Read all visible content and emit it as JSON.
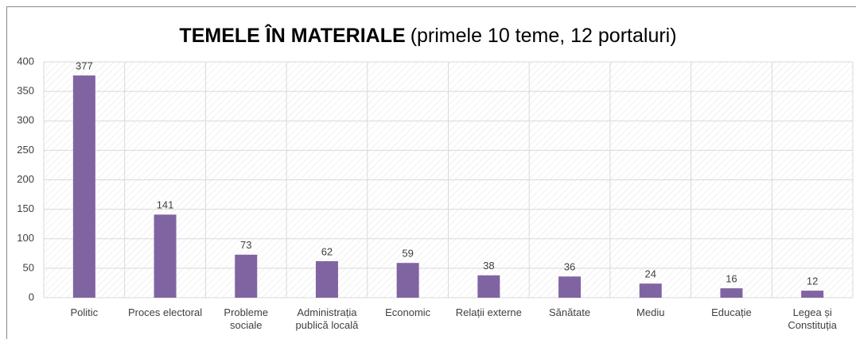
{
  "chart_data": {
    "type": "bar",
    "title": "TEMELE ÎN MATERIALE",
    "subtitle": "(primele 10 teme, 12 portaluri)",
    "categories": [
      "Politic",
      "Proces electoral",
      "Probleme sociale",
      "Administrația publică locală",
      "Economic",
      "Relații externe",
      "Sănătate",
      "Mediu",
      "Educație",
      "Legea și Constituția"
    ],
    "values": [
      377,
      141,
      73,
      62,
      59,
      38,
      36,
      24,
      16,
      12
    ],
    "color": "#8064a2",
    "ylim": [
      0,
      400
    ],
    "yticks": [
      0,
      50,
      100,
      150,
      200,
      250,
      300,
      350,
      400
    ],
    "grid": true
  }
}
